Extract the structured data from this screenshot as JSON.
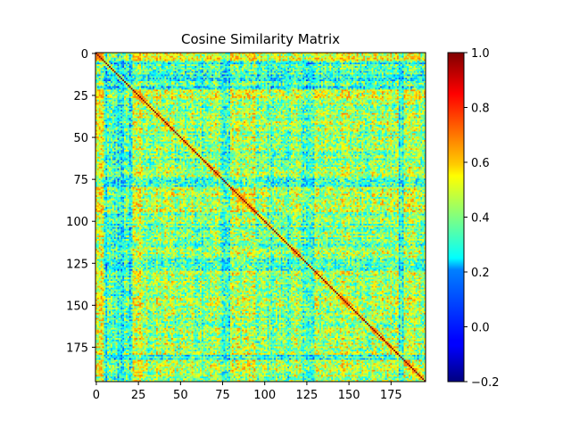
{
  "chart_data": {
    "type": "heatmap",
    "title": "Cosine Similarity Matrix",
    "xlabel": "",
    "ylabel": "",
    "matrix_size": 196,
    "x_ticks": [
      0,
      25,
      50,
      75,
      100,
      125,
      150,
      175
    ],
    "y_ticks": [
      0,
      25,
      50,
      75,
      100,
      125,
      150,
      175
    ],
    "colorbar": {
      "colormap": "jet",
      "vmin": -0.2,
      "vmax": 1.0,
      "ticks": [
        -0.2,
        0.0,
        0.2,
        0.4,
        0.6,
        0.8,
        1.0
      ],
      "tick_labels": [
        "−0.2",
        "0.0",
        "0.2",
        "0.4",
        "0.6",
        "0.8",
        "1.0"
      ]
    },
    "diagonal_value": 1.0,
    "typical_off_diagonal_range": [
      -0.2,
      0.65
    ],
    "block_structure": [
      {
        "rows": [
          0,
          5
        ],
        "level": 0.55
      },
      {
        "rows": [
          22,
          27
        ],
        "level": 0.55
      },
      {
        "rows": [
          27,
          75
        ],
        "level": 0.4
      },
      {
        "rows": [
          80,
          95
        ],
        "level": 0.45
      },
      {
        "rows": [
          95,
          125
        ],
        "level": 0.35
      },
      {
        "rows": [
          130,
          180
        ],
        "level": 0.42
      },
      {
        "rows": [
          183,
          196
        ],
        "level": 0.45
      }
    ],
    "grid": false
  }
}
